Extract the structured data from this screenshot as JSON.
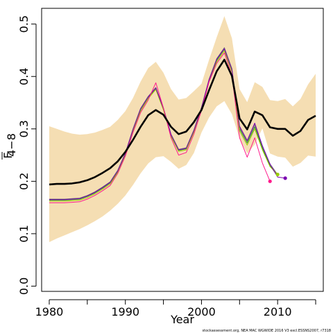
{
  "chart_data": {
    "type": "line",
    "xlabel": "Year",
    "ylabel": "F",
    "ylabel_subscript": "4−8",
    "xlim": [
      1979,
      2016
    ],
    "ylim": [
      -0.01,
      0.53
    ],
    "xticks": [
      1980,
      1990,
      2000,
      2010
    ],
    "yticks": [
      0.0,
      0.1,
      0.2,
      0.3,
      0.4,
      0.5
    ],
    "ytick_labels": [
      "0.0",
      "0.1",
      "0.2",
      "0.3",
      "0.4",
      "0.5"
    ],
    "credit": "stockassessment.org, NEA MAC WGWIDE 2016 V3 excl.ESSNS2007, r7318",
    "confidence_band": {
      "x": [
        1980,
        1981,
        1982,
        1983,
        1984,
        1985,
        1986,
        1987,
        1988,
        1989,
        1990,
        1991,
        1992,
        1993,
        1994,
        1995,
        1996,
        1997,
        1998,
        1999,
        2000,
        2001,
        2002,
        2003,
        2004,
        2005,
        2006,
        2007,
        2008,
        2009,
        2010,
        2011,
        2012,
        2013,
        2014,
        2015
      ],
      "lower": [
        0.084,
        0.091,
        0.097,
        0.103,
        0.109,
        0.116,
        0.124,
        0.133,
        0.144,
        0.157,
        0.173,
        0.193,
        0.215,
        0.234,
        0.246,
        0.248,
        0.237,
        0.224,
        0.231,
        0.254,
        0.293,
        0.322,
        0.343,
        0.353,
        0.328,
        0.282,
        0.253,
        0.27,
        0.301,
        0.253,
        0.247,
        0.245,
        0.228,
        0.235,
        0.249,
        0.247
      ],
      "upper": [
        0.305,
        0.3,
        0.295,
        0.291,
        0.289,
        0.29,
        0.293,
        0.298,
        0.304,
        0.317,
        0.334,
        0.359,
        0.39,
        0.416,
        0.428,
        0.407,
        0.376,
        0.356,
        0.359,
        0.372,
        0.386,
        0.432,
        0.475,
        0.515,
        0.473,
        0.376,
        0.351,
        0.389,
        0.38,
        0.355,
        0.353,
        0.357,
        0.343,
        0.357,
        0.385,
        0.405
      ]
    },
    "series": [
      {
        "color": "#000000",
        "width": 2.6,
        "x": [
          1980,
          1981,
          1982,
          1983,
          1984,
          1985,
          1986,
          1987,
          1988,
          1989,
          1990,
          1991,
          1992,
          1993,
          1994,
          1995,
          1996,
          1997,
          1998,
          1999,
          2000,
          2001,
          2002,
          2003,
          2004,
          2005,
          2006,
          2007,
          2008,
          2009,
          2010,
          2011,
          2012,
          2013,
          2014,
          2015
        ],
        "values": [
          0.194,
          0.195,
          0.195,
          0.196,
          0.198,
          0.202,
          0.208,
          0.216,
          0.225,
          0.238,
          0.256,
          0.279,
          0.304,
          0.326,
          0.336,
          0.327,
          0.304,
          0.29,
          0.295,
          0.313,
          0.336,
          0.374,
          0.41,
          0.432,
          0.401,
          0.32,
          0.299,
          0.333,
          0.326,
          0.303,
          0.3,
          0.3,
          0.287,
          0.296,
          0.317,
          0.325
        ]
      },
      {
        "color": "#777777",
        "width": 1,
        "x": [
          1980,
          1981,
          1982,
          1983,
          1984,
          1985,
          1986,
          1987,
          1988,
          1989,
          1990,
          1991,
          1992,
          1993,
          1994,
          1995,
          1996,
          1997,
          1998,
          1999,
          2000,
          2001,
          2002,
          2003,
          2004,
          2005,
          2006,
          2007,
          2008,
          2009,
          2010
        ],
        "values": [
          0.166,
          0.166,
          0.166,
          0.167,
          0.168,
          0.173,
          0.18,
          0.189,
          0.199,
          0.221,
          0.254,
          0.3,
          0.339,
          0.362,
          0.379,
          0.34,
          0.29,
          0.261,
          0.264,
          0.298,
          0.341,
          0.395,
          0.434,
          0.455,
          0.415,
          0.303,
          0.276,
          0.308,
          0.266,
          0.233,
          0.213
        ]
      },
      {
        "color": "#2e8b2e",
        "width": 1,
        "x": [
          1980,
          1981,
          1982,
          1983,
          1984,
          1985,
          1986,
          1987,
          1988,
          1989,
          1990,
          1991,
          1992,
          1993,
          1994,
          1995,
          1996,
          1997,
          1998,
          1999,
          2000,
          2001,
          2002,
          2003,
          2004,
          2005,
          2006,
          2007,
          2008,
          2009,
          2010
        ],
        "values": [
          0.164,
          0.164,
          0.164,
          0.165,
          0.166,
          0.171,
          0.178,
          0.187,
          0.197,
          0.219,
          0.252,
          0.298,
          0.337,
          0.36,
          0.377,
          0.338,
          0.288,
          0.259,
          0.262,
          0.296,
          0.339,
          0.393,
          0.431,
          0.452,
          0.412,
          0.3,
          0.273,
          0.304,
          0.263,
          0.23,
          0.21
        ]
      },
      {
        "color": "#99cc00",
        "width": 1,
        "x": [
          1980,
          1981,
          1982,
          1983,
          1984,
          1985,
          1986,
          1987,
          1988,
          1989,
          1990,
          1991,
          1992,
          1993,
          1994,
          1995,
          1996,
          1997,
          1998,
          1999,
          2000,
          2001,
          2002,
          2003,
          2004,
          2005,
          2006,
          2007,
          2008,
          2009,
          2010
        ],
        "values": [
          0.162,
          0.162,
          0.162,
          0.163,
          0.164,
          0.169,
          0.176,
          0.185,
          0.195,
          0.217,
          0.25,
          0.296,
          0.334,
          0.358,
          0.375,
          0.336,
          0.286,
          0.257,
          0.26,
          0.294,
          0.337,
          0.39,
          0.428,
          0.449,
          0.409,
          0.296,
          0.269,
          0.3,
          0.26,
          0.228,
          0.213
        ]
      },
      {
        "color": "#7a00b0",
        "width": 1,
        "x": [
          1980,
          1981,
          1982,
          1983,
          1984,
          1985,
          1986,
          1987,
          1988,
          1989,
          1990,
          1991,
          1992,
          1993,
          1994,
          1995,
          1996,
          1997,
          1998,
          1999,
          2000,
          2001,
          2002,
          2003,
          2004,
          2005,
          2006,
          2007,
          2008,
          2009,
          2010,
          2011
        ],
        "values": [
          0.165,
          0.165,
          0.165,
          0.166,
          0.167,
          0.172,
          0.179,
          0.188,
          0.198,
          0.22,
          0.253,
          0.299,
          0.338,
          0.361,
          0.378,
          0.339,
          0.289,
          0.26,
          0.263,
          0.297,
          0.34,
          0.394,
          0.433,
          0.453,
          0.413,
          0.305,
          0.278,
          0.311,
          0.268,
          0.233,
          0.208,
          0.206
        ]
      },
      {
        "color": "#ff1a8c",
        "width": 1,
        "x": [
          1980,
          1981,
          1982,
          1983,
          1984,
          1985,
          1986,
          1987,
          1988,
          1989,
          1990,
          1991,
          1992,
          1993,
          1994,
          1995,
          1996,
          1997,
          1998,
          1999,
          2000,
          2001,
          2002,
          2003,
          2004,
          2005,
          2006,
          2007,
          2008,
          2009
        ],
        "values": [
          0.159,
          0.159,
          0.159,
          0.16,
          0.161,
          0.166,
          0.173,
          0.182,
          0.192,
          0.215,
          0.248,
          0.293,
          0.331,
          0.355,
          0.388,
          0.34,
          0.283,
          0.25,
          0.255,
          0.29,
          0.335,
          0.39,
          0.425,
          0.445,
          0.403,
          0.283,
          0.246,
          0.283,
          0.235,
          0.2
        ]
      }
    ],
    "endpoints": [
      {
        "x": 2009,
        "y": 0.2,
        "color": "#ff1a8c"
      },
      {
        "x": 2010,
        "y": 0.213,
        "color": "#99cc00"
      },
      {
        "x": 2011,
        "y": 0.206,
        "color": "#7a00b0"
      }
    ],
    "band_color": "#f5deb3"
  }
}
